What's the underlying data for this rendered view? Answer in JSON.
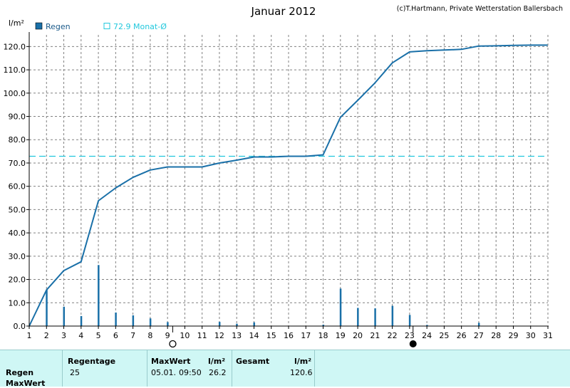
{
  "chart_data": {
    "type": "line+bar",
    "title": "Januar 2012",
    "credit": "(c)T.Hartmann, Private Wetterstation Ballersbach",
    "unit_label": "l/m²",
    "ylim": [
      0,
      125
    ],
    "y_ticks": [
      "0.0",
      "10.0",
      "20.0",
      "30.0",
      "40.0",
      "50.0",
      "60.0",
      "70.0",
      "80.0",
      "90.0",
      "100.0",
      "110.0",
      "120.0"
    ],
    "x_ticks": [
      "1",
      "2",
      "3",
      "4",
      "5",
      "6",
      "7",
      "8",
      "9",
      "10",
      "11",
      "12",
      "13",
      "14",
      "15",
      "16",
      "17",
      "18",
      "19",
      "20",
      "21",
      "22",
      "23",
      "24",
      "25",
      "26",
      "27",
      "28",
      "29",
      "30",
      "31"
    ],
    "grid": true,
    "legend": [
      {
        "label": "Regen",
        "color": "#1a70a8"
      },
      {
        "label": "72.9 Monat-Ø",
        "color": "#22c8dd"
      }
    ],
    "monthly_average": 72.9,
    "cumulative": {
      "name": "",
      "color": "#1a70a8",
      "x": [
        1,
        2,
        3,
        4,
        5,
        6,
        7,
        8,
        9,
        10,
        11,
        12,
        13,
        14,
        15,
        16,
        17,
        18,
        19,
        20,
        21,
        22,
        23,
        24,
        25,
        26,
        27,
        28,
        29,
        30,
        31
      ],
      "y": [
        0.0,
        15.5,
        23.8,
        27.6,
        53.8,
        59.3,
        63.8,
        67.0,
        68.3,
        68.3,
        68.3,
        70.0,
        71.2,
        72.6,
        72.6,
        72.9,
        72.9,
        73.5,
        89.6,
        96.9,
        104.4,
        113.0,
        117.7,
        118.2,
        118.5,
        118.8,
        120.2,
        120.3,
        120.5,
        120.6,
        120.6
      ]
    },
    "daily": {
      "name": "Regen",
      "color": "#1a70a8",
      "x": [
        2,
        3,
        4,
        5,
        6,
        7,
        8,
        9,
        12,
        13,
        14,
        18,
        19,
        20,
        21,
        22,
        23,
        24,
        27
      ],
      "y": [
        15.5,
        8.3,
        4.3,
        26.2,
        5.8,
        4.6,
        3.3,
        1.7,
        1.8,
        1.0,
        1.6,
        0.6,
        16.1,
        7.8,
        7.6,
        8.7,
        4.8,
        0.5,
        1.4
      ]
    },
    "moon_phases": [
      {
        "x": 9.3,
        "type": "full"
      },
      {
        "x": 23.2,
        "type": "new"
      }
    ]
  },
  "summary": {
    "row_labels": [
      "Regen",
      "MaxWert"
    ],
    "regentage_label": "Regentage",
    "regentage_value": "25",
    "maxwert_label": "MaxWert",
    "maxwert_unit": "l/m²",
    "maxwert_date": "05.01.",
    "maxwert_time": "09:50",
    "maxwert_value": "26.2",
    "gesamt_label": "Gesamt",
    "gesamt_unit": "l/m²",
    "gesamt_value": "120.6"
  }
}
